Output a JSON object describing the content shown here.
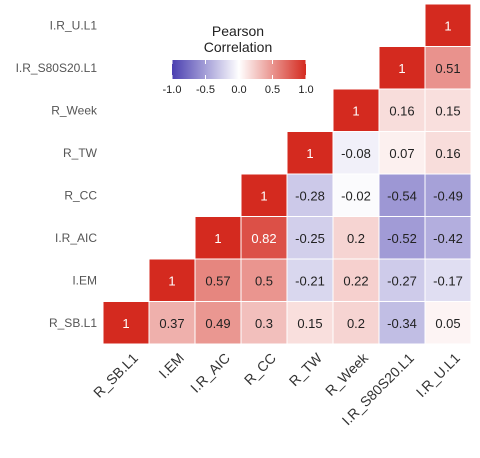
{
  "chart_data": {
    "type": "heatmap",
    "subtype": "lower-triangle correlation matrix",
    "variables": [
      "R_SB.L1",
      "I.EM",
      "I.R_AIC",
      "R_CC",
      "R_TW",
      "R_Week",
      "I.R_S80S20.L1",
      "I.R_U.L1"
    ],
    "rows": [
      {
        "name": "I.R_U.L1",
        "values": [
          1
        ]
      },
      {
        "name": "I.R_S80S20.L1",
        "values": [
          1,
          0.51
        ]
      },
      {
        "name": "R_Week",
        "values": [
          1,
          0.16,
          0.15
        ]
      },
      {
        "name": "R_TW",
        "values": [
          1,
          -0.08,
          0.07,
          0.16
        ]
      },
      {
        "name": "R_CC",
        "values": [
          1,
          -0.28,
          -0.02,
          -0.54,
          -0.49
        ]
      },
      {
        "name": "I.R_AIC",
        "values": [
          1,
          0.82,
          -0.25,
          0.2,
          -0.52,
          -0.42
        ]
      },
      {
        "name": "I.EM",
        "values": [
          1,
          0.57,
          0.5,
          -0.21,
          0.22,
          -0.27,
          -0.17
        ]
      },
      {
        "name": "R_SB.L1",
        "values": [
          1,
          0.37,
          0.49,
          0.3,
          0.15,
          0.2,
          -0.34,
          0.05
        ]
      }
    ],
    "legend": {
      "title_line1": "Pearson",
      "title_line2": "Correlation",
      "ticks": [
        "-1.0",
        "-0.5",
        "0.0",
        "0.5",
        "1.0"
      ],
      "range": [
        -1,
        1
      ],
      "placement": "top-center"
    },
    "colors": {
      "low": "#4a3fb0",
      "mid": "#ffffff",
      "high": "#d42a1f"
    },
    "grid": false
  }
}
